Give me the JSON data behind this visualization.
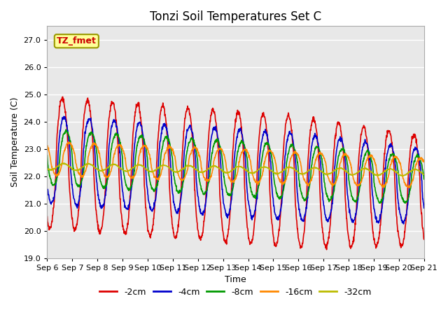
{
  "title": "Tonzi Soil Temperatures Set C",
  "xlabel": "Time",
  "ylabel": "Soil Temperature (C)",
  "ylim": [
    19.0,
    27.5
  ],
  "yticks": [
    19.0,
    20.0,
    21.0,
    22.0,
    23.0,
    24.0,
    25.0,
    26.0,
    27.0
  ],
  "xlabels": [
    "Sep 6",
    "Sep 7",
    "Sep 8",
    "Sep 9",
    "Sep 10",
    "Sep 11",
    "Sep 12",
    "Sep 13",
    "Sep 14",
    "Sep 15",
    "Sep 16",
    "Sep 17",
    "Sep 18",
    "Sep 19",
    "Sep 20",
    "Sep 21"
  ],
  "series_labels": [
    "-2cm",
    "-4cm",
    "-8cm",
    "-16cm",
    "-32cm"
  ],
  "series_colors": [
    "#dd0000",
    "#0000cc",
    "#009900",
    "#ff8800",
    "#bbbb00"
  ],
  "bg_color": "#e8e8e8",
  "annotation_text": "TZ_fmet",
  "annotation_bg": "#ffff99",
  "annotation_border": "#999900"
}
